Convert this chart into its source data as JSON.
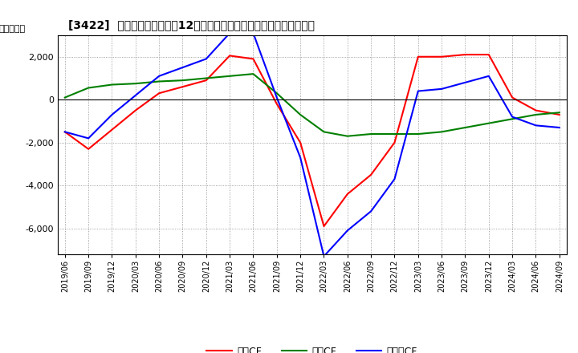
{
  "title": "[3422]  キャッシュフローの12か月移動合計の対前年同期増減額の推移",
  "ylabel": "（百万円）",
  "legend_labels": [
    "営業CF",
    "投資CF",
    "フリーCF"
  ],
  "line_colors": [
    "#ff0000",
    "#008000",
    "#0000ff"
  ],
  "ylim": [
    -7200,
    3000
  ],
  "yticks": [
    2000,
    0,
    -2000,
    -4000,
    -6000
  ],
  "plot_bg": "#ffffff",
  "fig_bg": "#ffffff",
  "x_labels": [
    "2019/06",
    "2019/09",
    "2019/12",
    "2020/03",
    "2020/06",
    "2020/09",
    "2020/12",
    "2021/03",
    "2021/06",
    "2021/09",
    "2021/12",
    "2022/03",
    "2022/06",
    "2022/09",
    "2022/12",
    "2023/03",
    "2023/06",
    "2023/09",
    "2023/12",
    "2024/03",
    "2024/06",
    "2024/09"
  ],
  "series": {
    "営業CF": [
      -1500,
      -2300,
      -1400,
      -500,
      300,
      600,
      900,
      2050,
      1900,
      -200,
      -2000,
      -5900,
      -4400,
      -3500,
      -2000,
      2000,
      2000,
      2100,
      2100,
      100,
      -500,
      -700
    ],
    "投資CF": [
      100,
      550,
      700,
      750,
      850,
      900,
      1000,
      1100,
      1200,
      300,
      -700,
      -1500,
      -1700,
      -1600,
      -1600,
      -1600,
      -1500,
      -1300,
      -1100,
      -900,
      -700,
      -600
    ],
    "フリーCF": [
      -1500,
      -1800,
      -700,
      200,
      1100,
      1500,
      1900,
      3100,
      3100,
      100,
      -2700,
      -7300,
      -6100,
      -5200,
      -3700,
      400,
      500,
      800,
      1100,
      -800,
      -1200,
      -1300
    ]
  }
}
